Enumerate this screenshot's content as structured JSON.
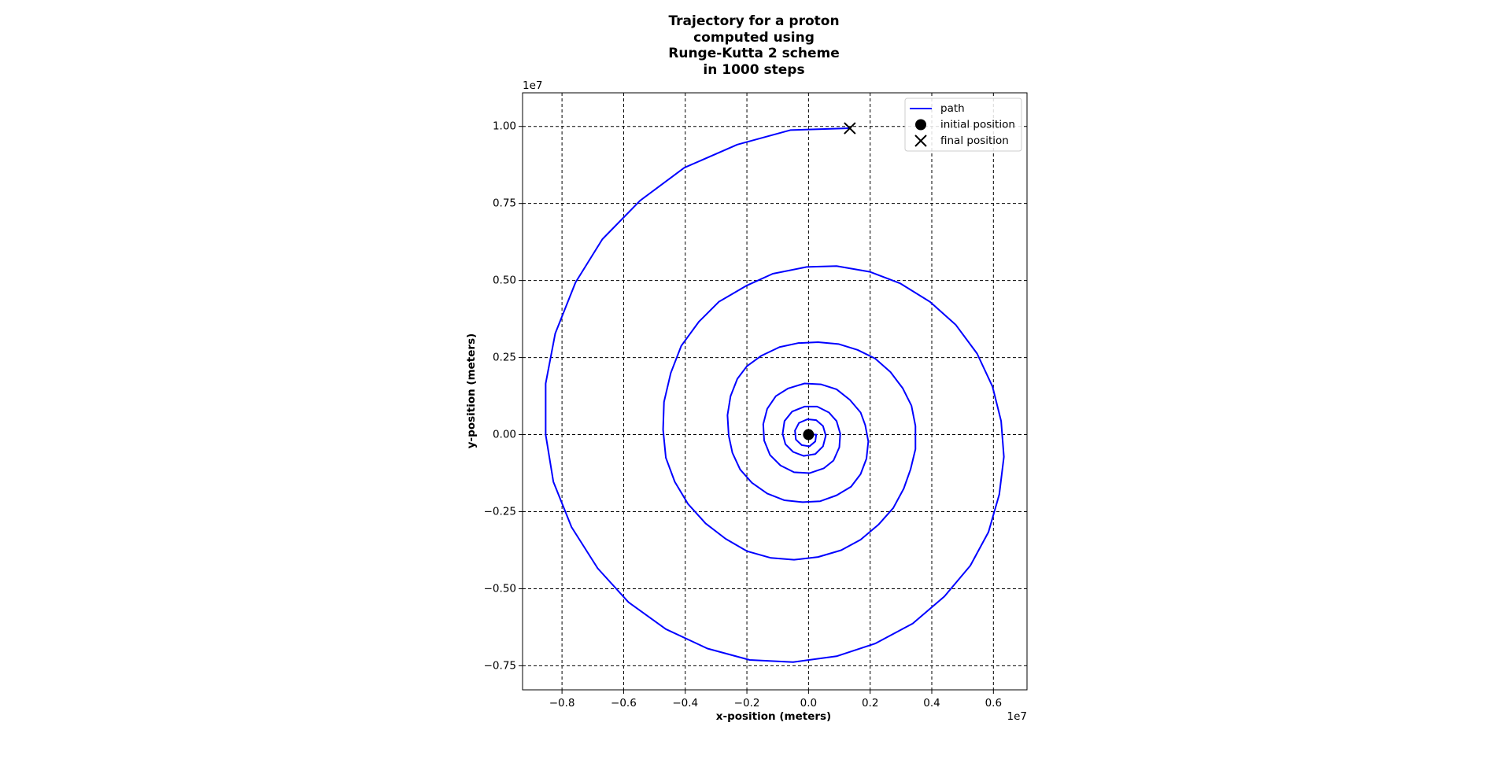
{
  "chart_data": {
    "type": "line",
    "title": "Trajectory for a proton\ncomputed using\nRunge-Kutta 2 scheme\nin 1000 steps",
    "xlabel": "x-position (meters)",
    "ylabel": "y-position (meters)",
    "x_offset_label": "1e7",
    "y_offset_label": "1e7",
    "xlim": [
      -0.928,
      0.709
    ],
    "ylim": [
      -0.828,
      1.109
    ],
    "xticks": [
      {
        "value": -0.8,
        "label": "−0.8"
      },
      {
        "value": -0.6,
        "label": "−0.6"
      },
      {
        "value": -0.4,
        "label": "−0.4"
      },
      {
        "value": -0.2,
        "label": "−0.2"
      },
      {
        "value": 0,
        "label": "0.0"
      },
      0.2,
      0.4,
      0.6
    ],
    "yticks": [
      {
        "value": -0.75,
        "label": "−0.75"
      },
      {
        "value": -0.5,
        "label": "−0.50"
      },
      {
        "value": -0.25,
        "label": "−0.25"
      },
      {
        "value": 0,
        "label": "0.00"
      },
      0.25,
      {
        "value": 0.5,
        "label": "0.50"
      },
      0.75,
      {
        "value": 1,
        "label": "1.00"
      }
    ],
    "grid": true,
    "legend_position": "upper right",
    "series": [
      {
        "name": "path",
        "color": "#0000ff",
        "marker": "line",
        "x": [
          0,
          0.025,
          0.022,
          0.003,
          -0.022,
          -0.041,
          -0.044,
          -0.031,
          -0.003,
          0.025,
          0.047,
          0.056,
          0.047,
          0.022,
          -0.016,
          -0.05,
          -0.075,
          -0.084,
          -0.078,
          -0.053,
          -0.013,
          0.028,
          0.066,
          0.091,
          0.103,
          0.1,
          0.081,
          0.05,
          0.003,
          -0.047,
          -0.091,
          -0.125,
          -0.144,
          -0.147,
          -0.134,
          -0.106,
          -0.066,
          -0.013,
          0.041,
          0.091,
          0.134,
          0.169,
          0.184,
          0.194,
          0.188,
          0.169,
          0.138,
          0.091,
          0.038,
          -0.019,
          -0.078,
          -0.134,
          -0.184,
          -0.222,
          -0.247,
          -0.259,
          -0.263,
          -0.253,
          -0.231,
          -0.2,
          -0.153,
          -0.094,
          -0.034,
          0.031,
          0.097,
          0.159,
          0.216,
          0.266,
          0.306,
          0.334,
          0.347,
          0.347,
          0.331,
          0.309,
          0.275,
          0.228,
          0.169,
          0.106,
          0.031,
          -0.047,
          -0.122,
          -0.2,
          -0.269,
          -0.334,
          -0.391,
          -0.434,
          -0.463,
          -0.472,
          -0.469,
          -0.447,
          -0.413,
          -0.356,
          -0.291,
          -0.2,
          -0.116,
          -0.006,
          0.091,
          0.2,
          0.297,
          0.394,
          0.478,
          0.547,
          0.597,
          0.625,
          0.634,
          0.619,
          0.584,
          0.525,
          0.441,
          0.338,
          0.216,
          0.091,
          -0.05,
          -0.191,
          -0.328,
          -0.463,
          -0.584,
          -0.684,
          -0.769,
          -0.828,
          -0.853,
          -0.853,
          -0.822,
          -0.756,
          -0.669,
          -0.547,
          -0.403,
          -0.231,
          -0.059,
          0.134
        ],
        "values": [
          0,
          0,
          -0.022,
          -0.038,
          -0.034,
          -0.016,
          0.013,
          0.038,
          0.05,
          0.047,
          0.028,
          -0.003,
          -0.038,
          -0.063,
          -0.069,
          -0.056,
          -0.031,
          0.003,
          0.044,
          0.075,
          0.091,
          0.091,
          0.072,
          0.044,
          0.003,
          -0.041,
          -0.084,
          -0.109,
          -0.125,
          -0.122,
          -0.1,
          -0.066,
          -0.019,
          0.034,
          0.084,
          0.125,
          0.15,
          0.166,
          0.163,
          0.147,
          0.113,
          0.072,
          0.031,
          -0.022,
          -0.078,
          -0.128,
          -0.169,
          -0.197,
          -0.216,
          -0.219,
          -0.213,
          -0.191,
          -0.156,
          -0.113,
          -0.059,
          -0.003,
          0.063,
          0.125,
          0.181,
          0.222,
          0.256,
          0.284,
          0.297,
          0.3,
          0.294,
          0.275,
          0.247,
          0.203,
          0.15,
          0.094,
          0.028,
          -0.047,
          -0.113,
          -0.175,
          -0.238,
          -0.291,
          -0.341,
          -0.375,
          -0.397,
          -0.406,
          -0.4,
          -0.378,
          -0.338,
          -0.288,
          -0.225,
          -0.153,
          -0.075,
          0.016,
          0.106,
          0.2,
          0.288,
          0.366,
          0.431,
          0.484,
          0.522,
          0.544,
          0.547,
          0.528,
          0.491,
          0.431,
          0.356,
          0.263,
          0.156,
          0.044,
          -0.072,
          -0.194,
          -0.316,
          -0.425,
          -0.525,
          -0.613,
          -0.678,
          -0.719,
          -0.738,
          -0.731,
          -0.694,
          -0.631,
          -0.544,
          -0.434,
          -0.3,
          -0.153,
          0,
          0.166,
          0.328,
          0.494,
          0.634,
          0.759,
          0.866,
          0.941,
          0.988,
          0.994
        ]
      },
      {
        "name": "initial position",
        "color": "#000000",
        "marker": "o",
        "x": [
          0
        ],
        "values": [
          0
        ]
      },
      {
        "name": "final position",
        "color": "#000000",
        "marker": "x",
        "x": [
          0.134
        ],
        "values": [
          0.994
        ]
      }
    ]
  }
}
